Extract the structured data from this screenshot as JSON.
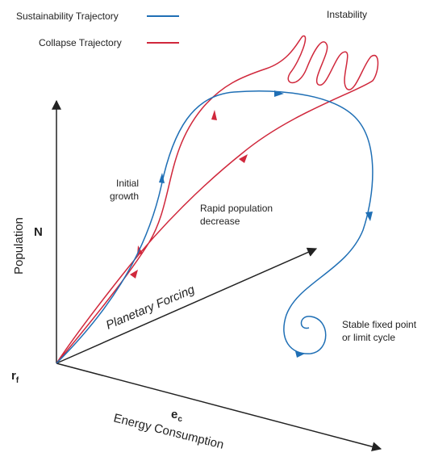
{
  "legend": [
    {
      "label": "Sustainability Trajectory",
      "color": "#1f6fb5"
    },
    {
      "label": "Collapse Trajectory",
      "color": "#d0283c"
    }
  ],
  "labels": {
    "instability": "Instability",
    "initial_growth": [
      "Initial",
      "growth"
    ],
    "rapid_decrease": [
      "Rapid population",
      "decrease"
    ],
    "stable": [
      "Stable fixed point",
      "or limit cycle"
    ],
    "planetary_forcing": "Planetary Forcing"
  },
  "axes": {
    "population": "Population",
    "n": "N",
    "r": {
      "base": "r",
      "sub": "f"
    },
    "e": {
      "base": "e",
      "sub": "c"
    },
    "energy": "Energy Consumption"
  }
}
